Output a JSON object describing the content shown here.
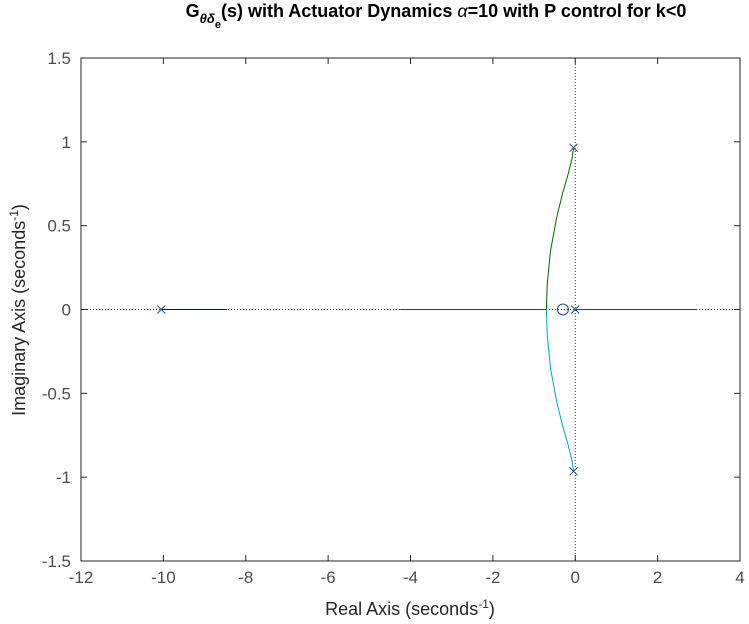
{
  "chart_data": {
    "type": "line",
    "title": {
      "g_letter": "G",
      "sub_main": "θδ",
      "sub_sub": "e",
      "before_alpha": "(s) with Actuator Dynamics ",
      "alpha": "α",
      "after_alpha": "=10 with P control for k<0"
    },
    "xlabel": {
      "text": "Real Axis (seconds",
      "sup": "-1",
      "close": ")"
    },
    "ylabel": {
      "text": "Imaginary Axis (seconds",
      "sup": "-1",
      "close": ")"
    },
    "xlim": [
      -12,
      4
    ],
    "ylim": [
      -1.5,
      1.5
    ],
    "xticks": [
      -12,
      -10,
      -8,
      -6,
      -4,
      -2,
      0,
      2,
      4
    ],
    "xtick_labels": [
      "-12",
      "-10",
      "-8",
      "-6",
      "-4",
      "-2",
      "0",
      "2",
      "4"
    ],
    "yticks": [
      1.5,
      1,
      0.5,
      0,
      -0.5,
      -1,
      -1.5
    ],
    "ytick_labels": [
      "1.5",
      "1",
      "0.5",
      "0",
      "-0.5",
      "-1",
      "-1.5"
    ],
    "grid": false,
    "colors": {
      "blue": "#0000cc",
      "red": "#cc0000",
      "green": "#006600",
      "cyan": "#00a8b8",
      "markers": "#1f4e8c",
      "ref_lines": "#333333"
    },
    "branches": [
      {
        "color": "blue",
        "x": [
          -10.05,
          -8.45
        ],
        "y": [
          0,
          0
        ]
      },
      {
        "color": "red",
        "x": [
          0,
          2.95
        ],
        "y": [
          0,
          0
        ]
      },
      {
        "color": "green",
        "x": [
          -4.25,
          -0.7
        ],
        "y": [
          0,
          0
        ]
      },
      {
        "color": "green",
        "x": [
          -0.7,
          -0.68,
          -0.6,
          -0.45,
          -0.3,
          -0.18,
          -0.08,
          -0.04
        ],
        "y": [
          0,
          0.15,
          0.35,
          0.55,
          0.7,
          0.8,
          0.9,
          0.965
        ]
      },
      {
        "color": "cyan",
        "x": [
          -0.7,
          -0.68,
          -0.6,
          -0.45,
          -0.3,
          -0.18,
          -0.08,
          -0.04
        ],
        "y": [
          0,
          -0.15,
          -0.35,
          -0.55,
          -0.7,
          -0.8,
          -0.9,
          -0.965
        ]
      }
    ],
    "poles": [
      {
        "x": -10.05,
        "y": 0
      },
      {
        "x": 0,
        "y": 0
      },
      {
        "x": -0.04,
        "y": 0.965
      },
      {
        "x": -0.04,
        "y": -0.965
      }
    ],
    "zeros": [
      {
        "x": -0.3,
        "y": 0
      }
    ]
  }
}
